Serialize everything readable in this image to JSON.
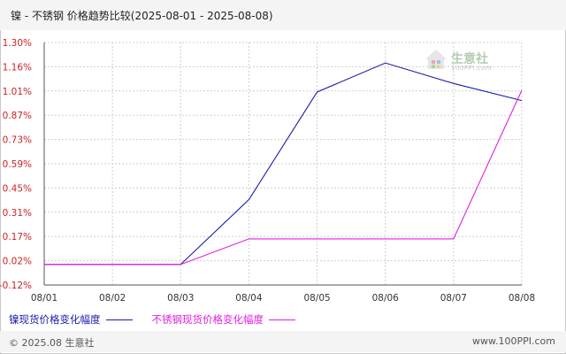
{
  "title": "镍 - 不锈钢 价格趋势比较(2025-08-01 - 2025-08-08)",
  "watermark": {
    "text": "生意社",
    "url": "100PPI.com"
  },
  "footer": {
    "copyright": "© 2025.08 生意社",
    "url": "www.100PPI.com"
  },
  "colors": {
    "nickel": "#1a1aaa",
    "stainless": "#e020e0",
    "y_tick_label": "#cc2222",
    "grid": "#cfcfcf",
    "axis": "#555555"
  },
  "chart_data": {
    "type": "line",
    "title": "镍 - 不锈钢 价格趋势比较(2025-08-01 - 2025-08-08)",
    "categories": [
      "08/01",
      "08/02",
      "08/03",
      "08/04",
      "08/05",
      "08/06",
      "08/07",
      "08/08"
    ],
    "y_ticks": [
      "1.30%",
      "1.16%",
      "1.01%",
      "0.87%",
      "0.73%",
      "0.59%",
      "0.45%",
      "0.31%",
      "0.17%",
      "0.02%",
      "-0.12%"
    ],
    "y_unit": "%",
    "ylim": [
      -0.12,
      1.3
    ],
    "grid": true,
    "legend_position": "bottom-left",
    "series": [
      {
        "name": "镍现货价格变化幅度",
        "color": "#1a1aaa",
        "values": [
          0.0,
          0.0,
          0.0,
          0.38,
          1.01,
          1.18,
          1.06,
          0.96
        ]
      },
      {
        "name": "不锈钢现货价格变化幅度",
        "color": "#e020e0",
        "values": [
          0.0,
          0.0,
          0.0,
          0.15,
          0.15,
          0.15,
          0.15,
          1.02
        ]
      }
    ]
  }
}
